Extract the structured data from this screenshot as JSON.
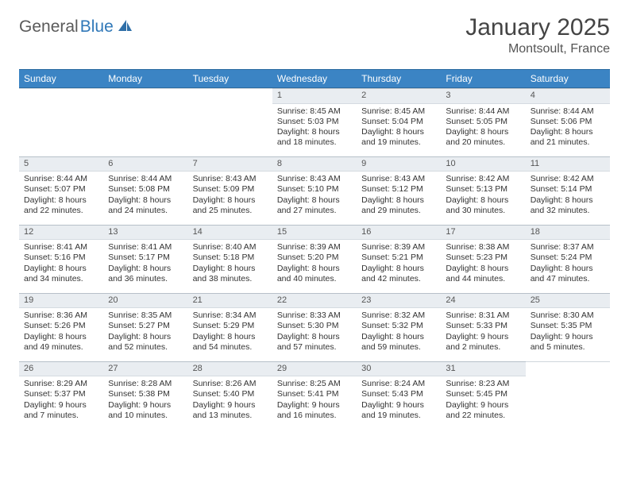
{
  "colors": {
    "header_bg": "#3b84c4",
    "header_text": "#ffffff",
    "daynum_bg": "#e9edf1",
    "daynum_text": "#555555",
    "body_text": "#333333",
    "logo_gray": "#5a5a5a",
    "logo_blue": "#3078b8",
    "page_bg": "#ffffff"
  },
  "logo": {
    "text1": "General",
    "text2": "Blue"
  },
  "title": "January 2025",
  "location": "Montsoult, France",
  "dayHeaders": [
    "Sunday",
    "Monday",
    "Tuesday",
    "Wednesday",
    "Thursday",
    "Friday",
    "Saturday"
  ],
  "weeks": [
    [
      null,
      null,
      null,
      {
        "n": "1",
        "sr": "Sunrise: 8:45 AM",
        "ss": "Sunset: 5:03 PM",
        "d1": "Daylight: 8 hours",
        "d2": "and 18 minutes."
      },
      {
        "n": "2",
        "sr": "Sunrise: 8:45 AM",
        "ss": "Sunset: 5:04 PM",
        "d1": "Daylight: 8 hours",
        "d2": "and 19 minutes."
      },
      {
        "n": "3",
        "sr": "Sunrise: 8:44 AM",
        "ss": "Sunset: 5:05 PM",
        "d1": "Daylight: 8 hours",
        "d2": "and 20 minutes."
      },
      {
        "n": "4",
        "sr": "Sunrise: 8:44 AM",
        "ss": "Sunset: 5:06 PM",
        "d1": "Daylight: 8 hours",
        "d2": "and 21 minutes."
      }
    ],
    [
      {
        "n": "5",
        "sr": "Sunrise: 8:44 AM",
        "ss": "Sunset: 5:07 PM",
        "d1": "Daylight: 8 hours",
        "d2": "and 22 minutes."
      },
      {
        "n": "6",
        "sr": "Sunrise: 8:44 AM",
        "ss": "Sunset: 5:08 PM",
        "d1": "Daylight: 8 hours",
        "d2": "and 24 minutes."
      },
      {
        "n": "7",
        "sr": "Sunrise: 8:43 AM",
        "ss": "Sunset: 5:09 PM",
        "d1": "Daylight: 8 hours",
        "d2": "and 25 minutes."
      },
      {
        "n": "8",
        "sr": "Sunrise: 8:43 AM",
        "ss": "Sunset: 5:10 PM",
        "d1": "Daylight: 8 hours",
        "d2": "and 27 minutes."
      },
      {
        "n": "9",
        "sr": "Sunrise: 8:43 AM",
        "ss": "Sunset: 5:12 PM",
        "d1": "Daylight: 8 hours",
        "d2": "and 29 minutes."
      },
      {
        "n": "10",
        "sr": "Sunrise: 8:42 AM",
        "ss": "Sunset: 5:13 PM",
        "d1": "Daylight: 8 hours",
        "d2": "and 30 minutes."
      },
      {
        "n": "11",
        "sr": "Sunrise: 8:42 AM",
        "ss": "Sunset: 5:14 PM",
        "d1": "Daylight: 8 hours",
        "d2": "and 32 minutes."
      }
    ],
    [
      {
        "n": "12",
        "sr": "Sunrise: 8:41 AM",
        "ss": "Sunset: 5:16 PM",
        "d1": "Daylight: 8 hours",
        "d2": "and 34 minutes."
      },
      {
        "n": "13",
        "sr": "Sunrise: 8:41 AM",
        "ss": "Sunset: 5:17 PM",
        "d1": "Daylight: 8 hours",
        "d2": "and 36 minutes."
      },
      {
        "n": "14",
        "sr": "Sunrise: 8:40 AM",
        "ss": "Sunset: 5:18 PM",
        "d1": "Daylight: 8 hours",
        "d2": "and 38 minutes."
      },
      {
        "n": "15",
        "sr": "Sunrise: 8:39 AM",
        "ss": "Sunset: 5:20 PM",
        "d1": "Daylight: 8 hours",
        "d2": "and 40 minutes."
      },
      {
        "n": "16",
        "sr": "Sunrise: 8:39 AM",
        "ss": "Sunset: 5:21 PM",
        "d1": "Daylight: 8 hours",
        "d2": "and 42 minutes."
      },
      {
        "n": "17",
        "sr": "Sunrise: 8:38 AM",
        "ss": "Sunset: 5:23 PM",
        "d1": "Daylight: 8 hours",
        "d2": "and 44 minutes."
      },
      {
        "n": "18",
        "sr": "Sunrise: 8:37 AM",
        "ss": "Sunset: 5:24 PM",
        "d1": "Daylight: 8 hours",
        "d2": "and 47 minutes."
      }
    ],
    [
      {
        "n": "19",
        "sr": "Sunrise: 8:36 AM",
        "ss": "Sunset: 5:26 PM",
        "d1": "Daylight: 8 hours",
        "d2": "and 49 minutes."
      },
      {
        "n": "20",
        "sr": "Sunrise: 8:35 AM",
        "ss": "Sunset: 5:27 PM",
        "d1": "Daylight: 8 hours",
        "d2": "and 52 minutes."
      },
      {
        "n": "21",
        "sr": "Sunrise: 8:34 AM",
        "ss": "Sunset: 5:29 PM",
        "d1": "Daylight: 8 hours",
        "d2": "and 54 minutes."
      },
      {
        "n": "22",
        "sr": "Sunrise: 8:33 AM",
        "ss": "Sunset: 5:30 PM",
        "d1": "Daylight: 8 hours",
        "d2": "and 57 minutes."
      },
      {
        "n": "23",
        "sr": "Sunrise: 8:32 AM",
        "ss": "Sunset: 5:32 PM",
        "d1": "Daylight: 8 hours",
        "d2": "and 59 minutes."
      },
      {
        "n": "24",
        "sr": "Sunrise: 8:31 AM",
        "ss": "Sunset: 5:33 PM",
        "d1": "Daylight: 9 hours",
        "d2": "and 2 minutes."
      },
      {
        "n": "25",
        "sr": "Sunrise: 8:30 AM",
        "ss": "Sunset: 5:35 PM",
        "d1": "Daylight: 9 hours",
        "d2": "and 5 minutes."
      }
    ],
    [
      {
        "n": "26",
        "sr": "Sunrise: 8:29 AM",
        "ss": "Sunset: 5:37 PM",
        "d1": "Daylight: 9 hours",
        "d2": "and 7 minutes."
      },
      {
        "n": "27",
        "sr": "Sunrise: 8:28 AM",
        "ss": "Sunset: 5:38 PM",
        "d1": "Daylight: 9 hours",
        "d2": "and 10 minutes."
      },
      {
        "n": "28",
        "sr": "Sunrise: 8:26 AM",
        "ss": "Sunset: 5:40 PM",
        "d1": "Daylight: 9 hours",
        "d2": "and 13 minutes."
      },
      {
        "n": "29",
        "sr": "Sunrise: 8:25 AM",
        "ss": "Sunset: 5:41 PM",
        "d1": "Daylight: 9 hours",
        "d2": "and 16 minutes."
      },
      {
        "n": "30",
        "sr": "Sunrise: 8:24 AM",
        "ss": "Sunset: 5:43 PM",
        "d1": "Daylight: 9 hours",
        "d2": "and 19 minutes."
      },
      {
        "n": "31",
        "sr": "Sunrise: 8:23 AM",
        "ss": "Sunset: 5:45 PM",
        "d1": "Daylight: 9 hours",
        "d2": "and 22 minutes."
      },
      null
    ]
  ]
}
